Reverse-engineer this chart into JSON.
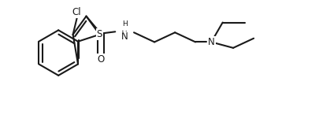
{
  "bg_color": "#ffffff",
  "line_color": "#1a1a1a",
  "line_width": 1.5,
  "figsize": [
    4.06,
    1.55
  ],
  "dpi": 100,
  "label_fontsize": 8.0,
  "xlim": [
    0,
    4.06
  ],
  "ylim": [
    0,
    1.55
  ]
}
